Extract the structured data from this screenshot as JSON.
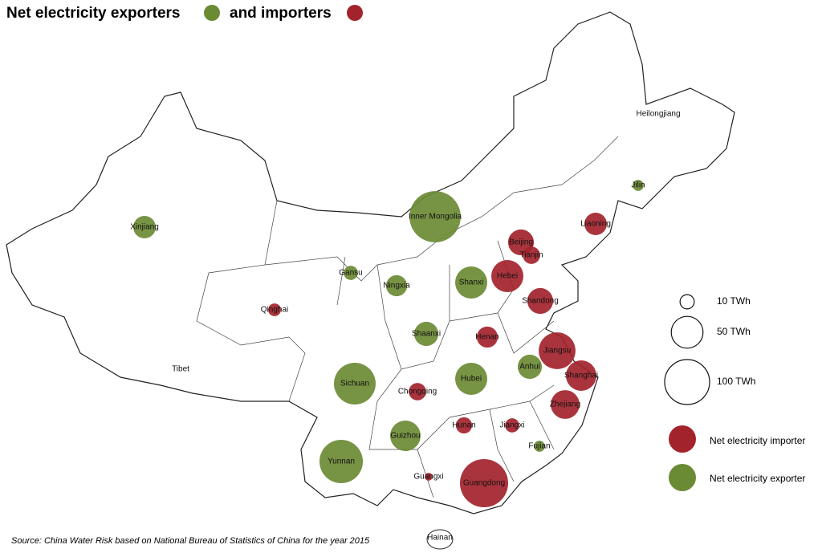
{
  "title_part1": "Net electricity exporters",
  "title_part2": "and importers",
  "source": "Source: China Water Risk based on National Bureau of Statistics of China for the year 2015",
  "colors": {
    "exporter": "#6b8a34",
    "importer": "#a3232c"
  },
  "size_legend": [
    {
      "value": 10,
      "label": "10 TWh"
    },
    {
      "value": 50,
      "label": "50 TWh"
    },
    {
      "value": 100,
      "label": "100 TWh"
    }
  ],
  "type_legend": {
    "importer": "Net electricity importer",
    "exporter": "Net electricity exporter"
  },
  "provinces": [
    {
      "name": "Inner Mongolia",
      "role": "exporter",
      "value": 130
    },
    {
      "name": "Xinjiang",
      "role": "exporter",
      "value": 25
    },
    {
      "name": "Heilongjiang",
      "role": null,
      "value": null
    },
    {
      "name": "Jilin",
      "role": "exporter",
      "value": 6
    },
    {
      "name": "Liaoning",
      "role": "importer",
      "value": 25
    },
    {
      "name": "Beijing",
      "role": "importer",
      "value": 33
    },
    {
      "name": "Tianjin",
      "role": "importer",
      "value": 15
    },
    {
      "name": "Hebei",
      "role": "importer",
      "value": 51
    },
    {
      "name": "Shanxi",
      "role": "exporter",
      "value": 51
    },
    {
      "name": "Gansu",
      "role": "exporter",
      "value": 10
    },
    {
      "name": "Ningxia",
      "role": "exporter",
      "value": 22
    },
    {
      "name": "Qinghai",
      "role": "importer",
      "value": 8
    },
    {
      "name": "Shandong",
      "role": "importer",
      "value": 33
    },
    {
      "name": "Shaanxi",
      "role": "exporter",
      "value": 29
    },
    {
      "name": "Henan",
      "role": "importer",
      "value": 22
    },
    {
      "name": "Jiangsu",
      "role": "importer",
      "value": 67
    },
    {
      "name": "Anhui",
      "role": "exporter",
      "value": 29
    },
    {
      "name": "Shanghai",
      "role": "importer",
      "value": 46
    },
    {
      "name": "Tibet",
      "role": null,
      "value": null
    },
    {
      "name": "Sichuan",
      "role": "exporter",
      "value": 86
    },
    {
      "name": "Hubei",
      "role": "exporter",
      "value": 51
    },
    {
      "name": "Chongqing",
      "role": "importer",
      "value": 15
    },
    {
      "name": "Zhejiang",
      "role": "importer",
      "value": 41
    },
    {
      "name": "Hunan",
      "role": "importer",
      "value": 13
    },
    {
      "name": "Jiangxi",
      "role": "importer",
      "value": 10
    },
    {
      "name": "Guizhou",
      "role": "exporter",
      "value": 46
    },
    {
      "name": "Fujian",
      "role": "exporter",
      "value": 6
    },
    {
      "name": "Yunnan",
      "role": "exporter",
      "value": 93
    },
    {
      "name": "Guangxi",
      "role": "importer",
      "value": 3
    },
    {
      "name": "Guangdong",
      "role": "importer",
      "value": 115
    },
    {
      "name": "Hainan",
      "role": null,
      "value": null
    }
  ]
}
